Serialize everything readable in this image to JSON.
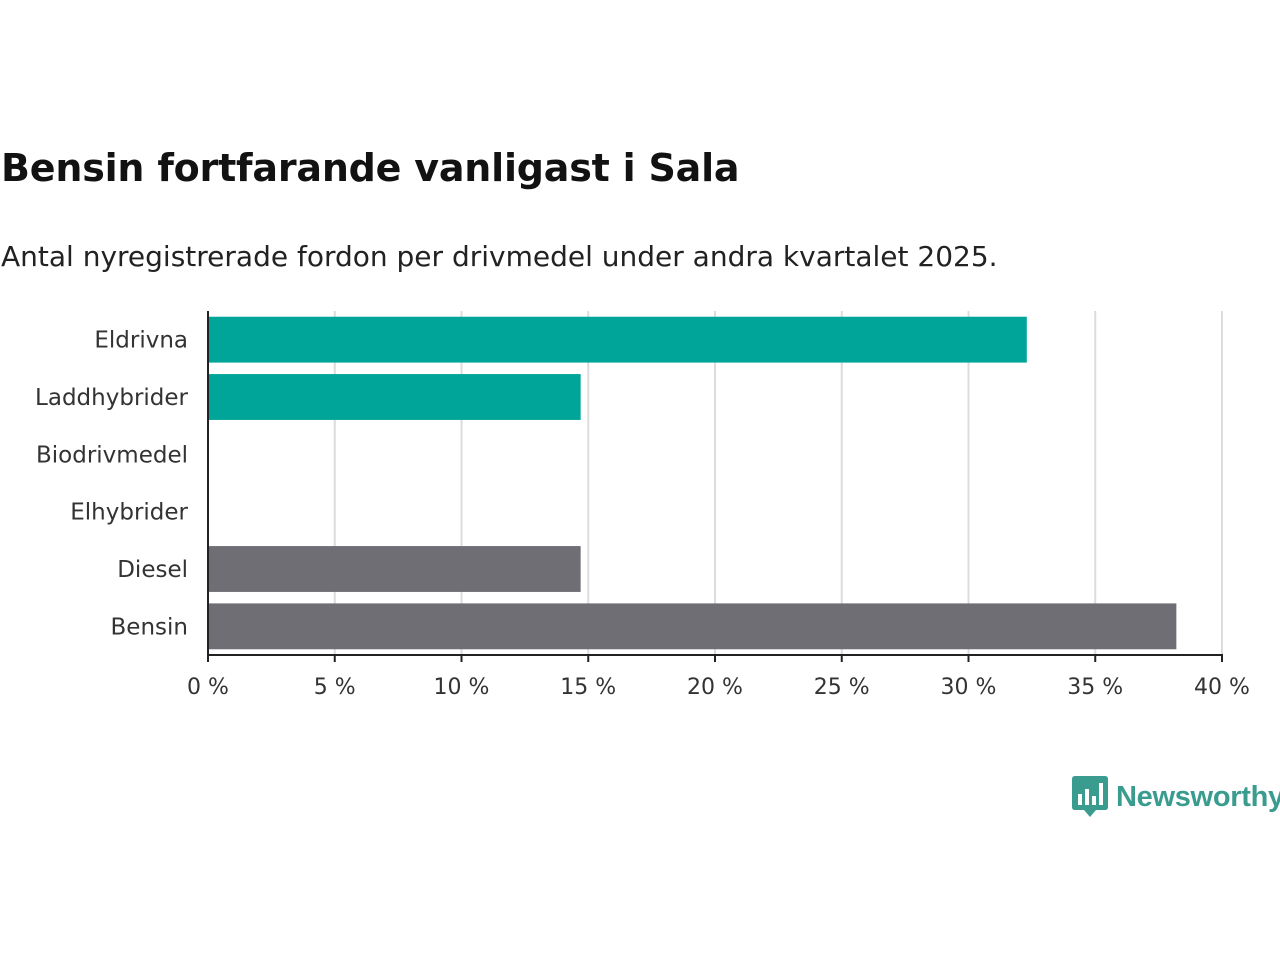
{
  "title": "Bensin fortfarande vanligast i Sala",
  "subtitle": "Antal nyregistrerade fordon per drivmedel under andra kvartalet 2025.",
  "logo": {
    "text": "Newsworthy",
    "icon": "bar-chart-speech-bubble-icon",
    "color": "#3a9c8e"
  },
  "chart_data": {
    "type": "bar",
    "orientation": "horizontal",
    "categories": [
      "Eldrivna",
      "Laddhybrider",
      "Biodrivmedel",
      "Elhybrider",
      "Diesel",
      "Bensin"
    ],
    "values": [
      32.3,
      14.7,
      0,
      0,
      14.7,
      38.2
    ],
    "bar_colors": [
      "#00a59a",
      "#00a59a",
      "#00a59a",
      "#00a59a",
      "#6f6e74",
      "#6f6e74"
    ],
    "xlim": [
      0,
      40
    ],
    "xticks": [
      0,
      5,
      10,
      15,
      20,
      25,
      30,
      35,
      40
    ],
    "xtick_labels": [
      "0 %",
      "5 %",
      "10 %",
      "15 %",
      "20 %",
      "25 %",
      "30 %",
      "35 %",
      "40 %"
    ],
    "grid": true
  }
}
